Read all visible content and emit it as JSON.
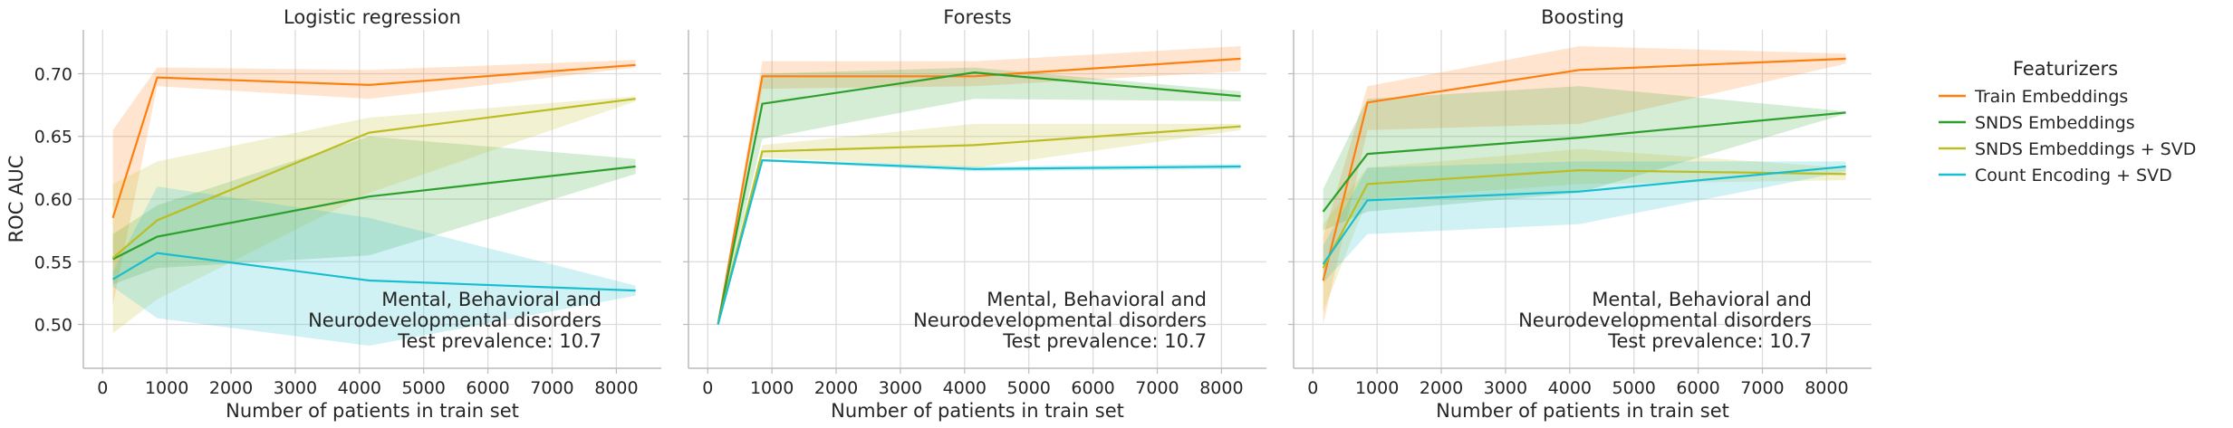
{
  "chart_data": [
    {
      "type": "line",
      "title": "Logistic regression",
      "xlabel": "Number of patients in train set",
      "ylabel": "ROC AUC",
      "xlim": [
        -300,
        8700
      ],
      "ylim": [
        0.465,
        0.735
      ],
      "xticks": [
        0,
        1000,
        2000,
        3000,
        4000,
        5000,
        6000,
        7000,
        8000
      ],
      "yticks": [
        0.5,
        0.55,
        0.6,
        0.65,
        0.7
      ],
      "grid": true,
      "annotation": [
        "Mental, Behavioral and",
        "Neurodevelopmental disorders",
        "Test prevalence: 10.7"
      ],
      "series": [
        {
          "name": "Train Embeddings",
          "color": "#ff7f0e",
          "x": [
            160,
            850,
            4150,
            8300
          ],
          "y": [
            0.585,
            0.697,
            0.691,
            0.707
          ],
          "lower": [
            0.515,
            0.69,
            0.68,
            0.705
          ],
          "upper": [
            0.655,
            0.705,
            0.703,
            0.711
          ]
        },
        {
          "name": "SNDS Embeddings",
          "color": "#2ca02c",
          "x": [
            160,
            850,
            4150,
            8300
          ],
          "y": [
            0.552,
            0.57,
            0.602,
            0.626
          ],
          "lower": [
            0.532,
            0.545,
            0.555,
            0.62
          ],
          "upper": [
            0.572,
            0.595,
            0.65,
            0.632
          ]
        },
        {
          "name": "SNDS Embeddings + SVD",
          "color": "#bcbd22",
          "x": [
            160,
            850,
            4150,
            8300
          ],
          "y": [
            0.553,
            0.583,
            0.653,
            0.68
          ],
          "lower": [
            0.493,
            0.52,
            0.605,
            0.678
          ],
          "upper": [
            0.612,
            0.63,
            0.665,
            0.682
          ]
        },
        {
          "name": "Count Encoding + SVD",
          "color": "#17becf",
          "x": [
            160,
            850,
            4150,
            8300
          ],
          "y": [
            0.536,
            0.557,
            0.535,
            0.527
          ],
          "lower": [
            0.53,
            0.505,
            0.483,
            0.523
          ],
          "upper": [
            0.542,
            0.61,
            0.585,
            0.531
          ]
        }
      ]
    },
    {
      "type": "line",
      "title": "Forests",
      "xlabel": "Number of patients in train set",
      "ylabel": "",
      "xlim": [
        -300,
        8700
      ],
      "ylim": [
        0.465,
        0.735
      ],
      "xticks": [
        0,
        1000,
        2000,
        3000,
        4000,
        5000,
        6000,
        7000,
        8000
      ],
      "yticks": [
        0.5,
        0.55,
        0.6,
        0.65,
        0.7
      ],
      "grid": true,
      "annotation": [
        "Mental, Behavioral and",
        "Neurodevelopmental disorders",
        "Test prevalence: 10.7"
      ],
      "series": [
        {
          "name": "Train Embeddings",
          "color": "#ff7f0e",
          "x": [
            160,
            850,
            4150,
            8300
          ],
          "y": [
            0.5,
            0.698,
            0.698,
            0.712
          ],
          "lower": [
            0.5,
            0.688,
            0.69,
            0.702
          ],
          "upper": [
            0.5,
            0.71,
            0.71,
            0.722
          ]
        },
        {
          "name": "SNDS Embeddings",
          "color": "#2ca02c",
          "x": [
            160,
            850,
            4150,
            8300
          ],
          "y": [
            0.5,
            0.676,
            0.701,
            0.682
          ],
          "lower": [
            0.5,
            0.648,
            0.68,
            0.678
          ],
          "upper": [
            0.5,
            0.7,
            0.705,
            0.686
          ]
        },
        {
          "name": "SNDS Embeddings + SVD",
          "color": "#bcbd22",
          "x": [
            160,
            850,
            4150,
            8300
          ],
          "y": [
            0.5,
            0.638,
            0.643,
            0.658
          ],
          "lower": [
            0.5,
            0.633,
            0.625,
            0.655
          ],
          "upper": [
            0.5,
            0.643,
            0.66,
            0.66
          ]
        },
        {
          "name": "Count Encoding + SVD",
          "color": "#17becf",
          "x": [
            160,
            850,
            4150,
            8300
          ],
          "y": [
            0.5,
            0.631,
            0.624,
            0.626
          ],
          "lower": [
            0.5,
            0.63,
            0.622,
            0.624
          ],
          "upper": [
            0.5,
            0.632,
            0.626,
            0.628
          ]
        }
      ]
    },
    {
      "type": "line",
      "title": "Boosting",
      "xlabel": "Number of patients in train set",
      "ylabel": "",
      "xlim": [
        -300,
        8700
      ],
      "ylim": [
        0.465,
        0.735
      ],
      "xticks": [
        0,
        1000,
        2000,
        3000,
        4000,
        5000,
        6000,
        7000,
        8000
      ],
      "yticks": [
        0.5,
        0.55,
        0.6,
        0.65,
        0.7
      ],
      "grid": true,
      "annotation": [
        "Mental, Behavioral and",
        "Neurodevelopmental disorders",
        "Test prevalence: 10.7"
      ],
      "series": [
        {
          "name": "Train Embeddings",
          "color": "#ff7f0e",
          "x": [
            160,
            850,
            4150,
            8300
          ],
          "y": [
            0.535,
            0.677,
            0.703,
            0.712
          ],
          "lower": [
            0.5,
            0.655,
            0.66,
            0.708
          ],
          "upper": [
            0.57,
            0.69,
            0.722,
            0.716
          ]
        },
        {
          "name": "SNDS Embeddings",
          "color": "#2ca02c",
          "x": [
            160,
            850,
            4150,
            8300
          ],
          "y": [
            0.59,
            0.636,
            0.649,
            0.669
          ],
          "lower": [
            0.575,
            0.59,
            0.605,
            0.668
          ],
          "upper": [
            0.608,
            0.68,
            0.69,
            0.67
          ]
        },
        {
          "name": "SNDS Embeddings + SVD",
          "color": "#bcbd22",
          "x": [
            160,
            850,
            4150,
            8300
          ],
          "y": [
            0.545,
            0.612,
            0.623,
            0.62
          ],
          "lower": [
            0.51,
            0.6,
            0.612,
            0.615
          ],
          "upper": [
            0.58,
            0.625,
            0.64,
            0.625
          ]
        },
        {
          "name": "Count Encoding + SVD",
          "color": "#17becf",
          "x": [
            160,
            850,
            4150,
            8300
          ],
          "y": [
            0.548,
            0.599,
            0.606,
            0.626
          ],
          "lower": [
            0.533,
            0.572,
            0.58,
            0.622
          ],
          "upper": [
            0.563,
            0.625,
            0.63,
            0.63
          ]
        }
      ]
    }
  ],
  "legend": {
    "title": "Featurizers",
    "placement": "right",
    "items": [
      {
        "label": "Train Embeddings",
        "color": "#ff7f0e"
      },
      {
        "label": "SNDS Embeddings",
        "color": "#2ca02c"
      },
      {
        "label": "SNDS Embeddings + SVD",
        "color": "#bcbd22"
      },
      {
        "label": "Count Encoding + SVD",
        "color": "#17becf"
      }
    ]
  }
}
